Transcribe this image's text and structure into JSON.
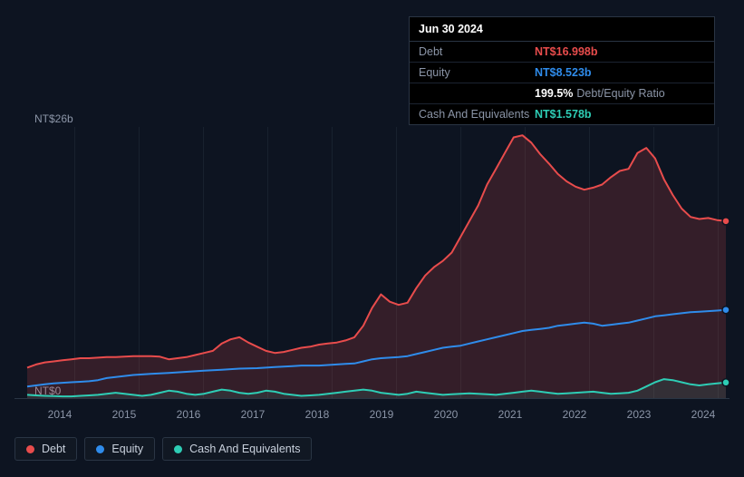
{
  "chart": {
    "type": "area",
    "background_color": "#0d1421",
    "grid_color": "#2a3544",
    "text_color": "#8b95a7",
    "y_axis": {
      "top_label": "NT$26b",
      "bottom_label": "NT$0",
      "min": 0,
      "max": 26
    },
    "x_axis": {
      "labels": [
        "2014",
        "2015",
        "2016",
        "2017",
        "2018",
        "2019",
        "2020",
        "2021",
        "2022",
        "2023",
        "2024"
      ],
      "positions": [
        50,
        121,
        192,
        263,
        334,
        405,
        476,
        547,
        618,
        689,
        760
      ]
    },
    "series": [
      {
        "name": "Debt",
        "color": "#e84c4c",
        "fill_opacity": 0.18,
        "line_width": 2,
        "values": [
          3.0,
          3.3,
          3.5,
          3.6,
          3.7,
          3.8,
          3.9,
          3.9,
          3.95,
          4.0,
          4.0,
          4.05,
          4.1,
          4.1,
          4.1,
          4.05,
          3.8,
          3.9,
          4.0,
          4.2,
          4.4,
          4.6,
          5.3,
          5.7,
          5.9,
          5.4,
          5.0,
          4.6,
          4.4,
          4.5,
          4.7,
          4.9,
          5.0,
          5.2,
          5.3,
          5.4,
          5.6,
          5.9,
          7.0,
          8.7,
          10.0,
          9.3,
          9.0,
          9.2,
          10.6,
          11.8,
          12.6,
          13.2,
          14.0,
          15.5,
          17.0,
          18.5,
          20.5,
          22.0,
          23.5,
          25.0,
          25.2,
          24.5,
          23.4,
          22.5,
          21.5,
          20.8,
          20.3,
          20.0,
          20.2,
          20.5,
          21.2,
          21.8,
          22.0,
          23.5,
          24.0,
          23.0,
          21.0,
          19.5,
          18.2,
          17.4,
          17.2,
          17.3,
          17.1,
          17.0
        ]
      },
      {
        "name": "Equity",
        "color": "#2f8ceb",
        "fill_opacity": 0.0,
        "line_width": 2,
        "values": [
          1.2,
          1.3,
          1.4,
          1.5,
          1.55,
          1.6,
          1.65,
          1.7,
          1.8,
          2.0,
          2.1,
          2.2,
          2.3,
          2.35,
          2.4,
          2.45,
          2.5,
          2.55,
          2.6,
          2.65,
          2.7,
          2.75,
          2.8,
          2.85,
          2.9,
          2.92,
          2.95,
          3.0,
          3.05,
          3.1,
          3.15,
          3.2,
          3.2,
          3.2,
          3.25,
          3.3,
          3.35,
          3.4,
          3.6,
          3.8,
          3.9,
          3.95,
          4.0,
          4.1,
          4.3,
          4.5,
          4.7,
          4.9,
          5.0,
          5.1,
          5.3,
          5.5,
          5.7,
          5.9,
          6.1,
          6.3,
          6.5,
          6.6,
          6.7,
          6.8,
          7.0,
          7.1,
          7.2,
          7.3,
          7.2,
          7.0,
          7.1,
          7.2,
          7.3,
          7.5,
          7.7,
          7.9,
          8.0,
          8.1,
          8.2,
          8.3,
          8.35,
          8.4,
          8.45,
          8.52
        ]
      },
      {
        "name": "Cash And Equivalents",
        "color": "#2ecdb5",
        "fill_opacity": 0.1,
        "line_width": 2,
        "values": [
          0.4,
          0.35,
          0.3,
          0.28,
          0.25,
          0.25,
          0.3,
          0.35,
          0.4,
          0.5,
          0.6,
          0.5,
          0.4,
          0.3,
          0.4,
          0.6,
          0.8,
          0.7,
          0.5,
          0.4,
          0.5,
          0.7,
          0.9,
          0.8,
          0.6,
          0.5,
          0.6,
          0.8,
          0.7,
          0.5,
          0.4,
          0.3,
          0.35,
          0.4,
          0.5,
          0.6,
          0.7,
          0.8,
          0.9,
          0.8,
          0.6,
          0.5,
          0.4,
          0.5,
          0.7,
          0.6,
          0.5,
          0.4,
          0.45,
          0.5,
          0.55,
          0.5,
          0.45,
          0.4,
          0.5,
          0.6,
          0.7,
          0.8,
          0.7,
          0.6,
          0.5,
          0.55,
          0.6,
          0.65,
          0.7,
          0.6,
          0.5,
          0.55,
          0.6,
          0.8,
          1.2,
          1.6,
          1.9,
          1.8,
          1.6,
          1.4,
          1.3,
          1.4,
          1.5,
          1.58
        ]
      }
    ],
    "end_markers": true
  },
  "tooltip": {
    "date": "Jun 30 2024",
    "rows": [
      {
        "label": "Debt",
        "value": "NT$16.998b",
        "color": "#e84c4c"
      },
      {
        "label": "Equity",
        "value": "NT$8.523b",
        "color": "#2f8ceb"
      },
      {
        "label": "",
        "value": "199.5%",
        "suffix": "Debt/Equity Ratio",
        "color": "#ffffff"
      },
      {
        "label": "Cash And Equivalents",
        "value": "NT$1.578b",
        "color": "#2ecdb5"
      }
    ]
  },
  "legend": {
    "items": [
      {
        "label": "Debt",
        "color": "#e84c4c"
      },
      {
        "label": "Equity",
        "color": "#2f8ceb"
      },
      {
        "label": "Cash And Equivalents",
        "color": "#2ecdb5"
      }
    ]
  }
}
